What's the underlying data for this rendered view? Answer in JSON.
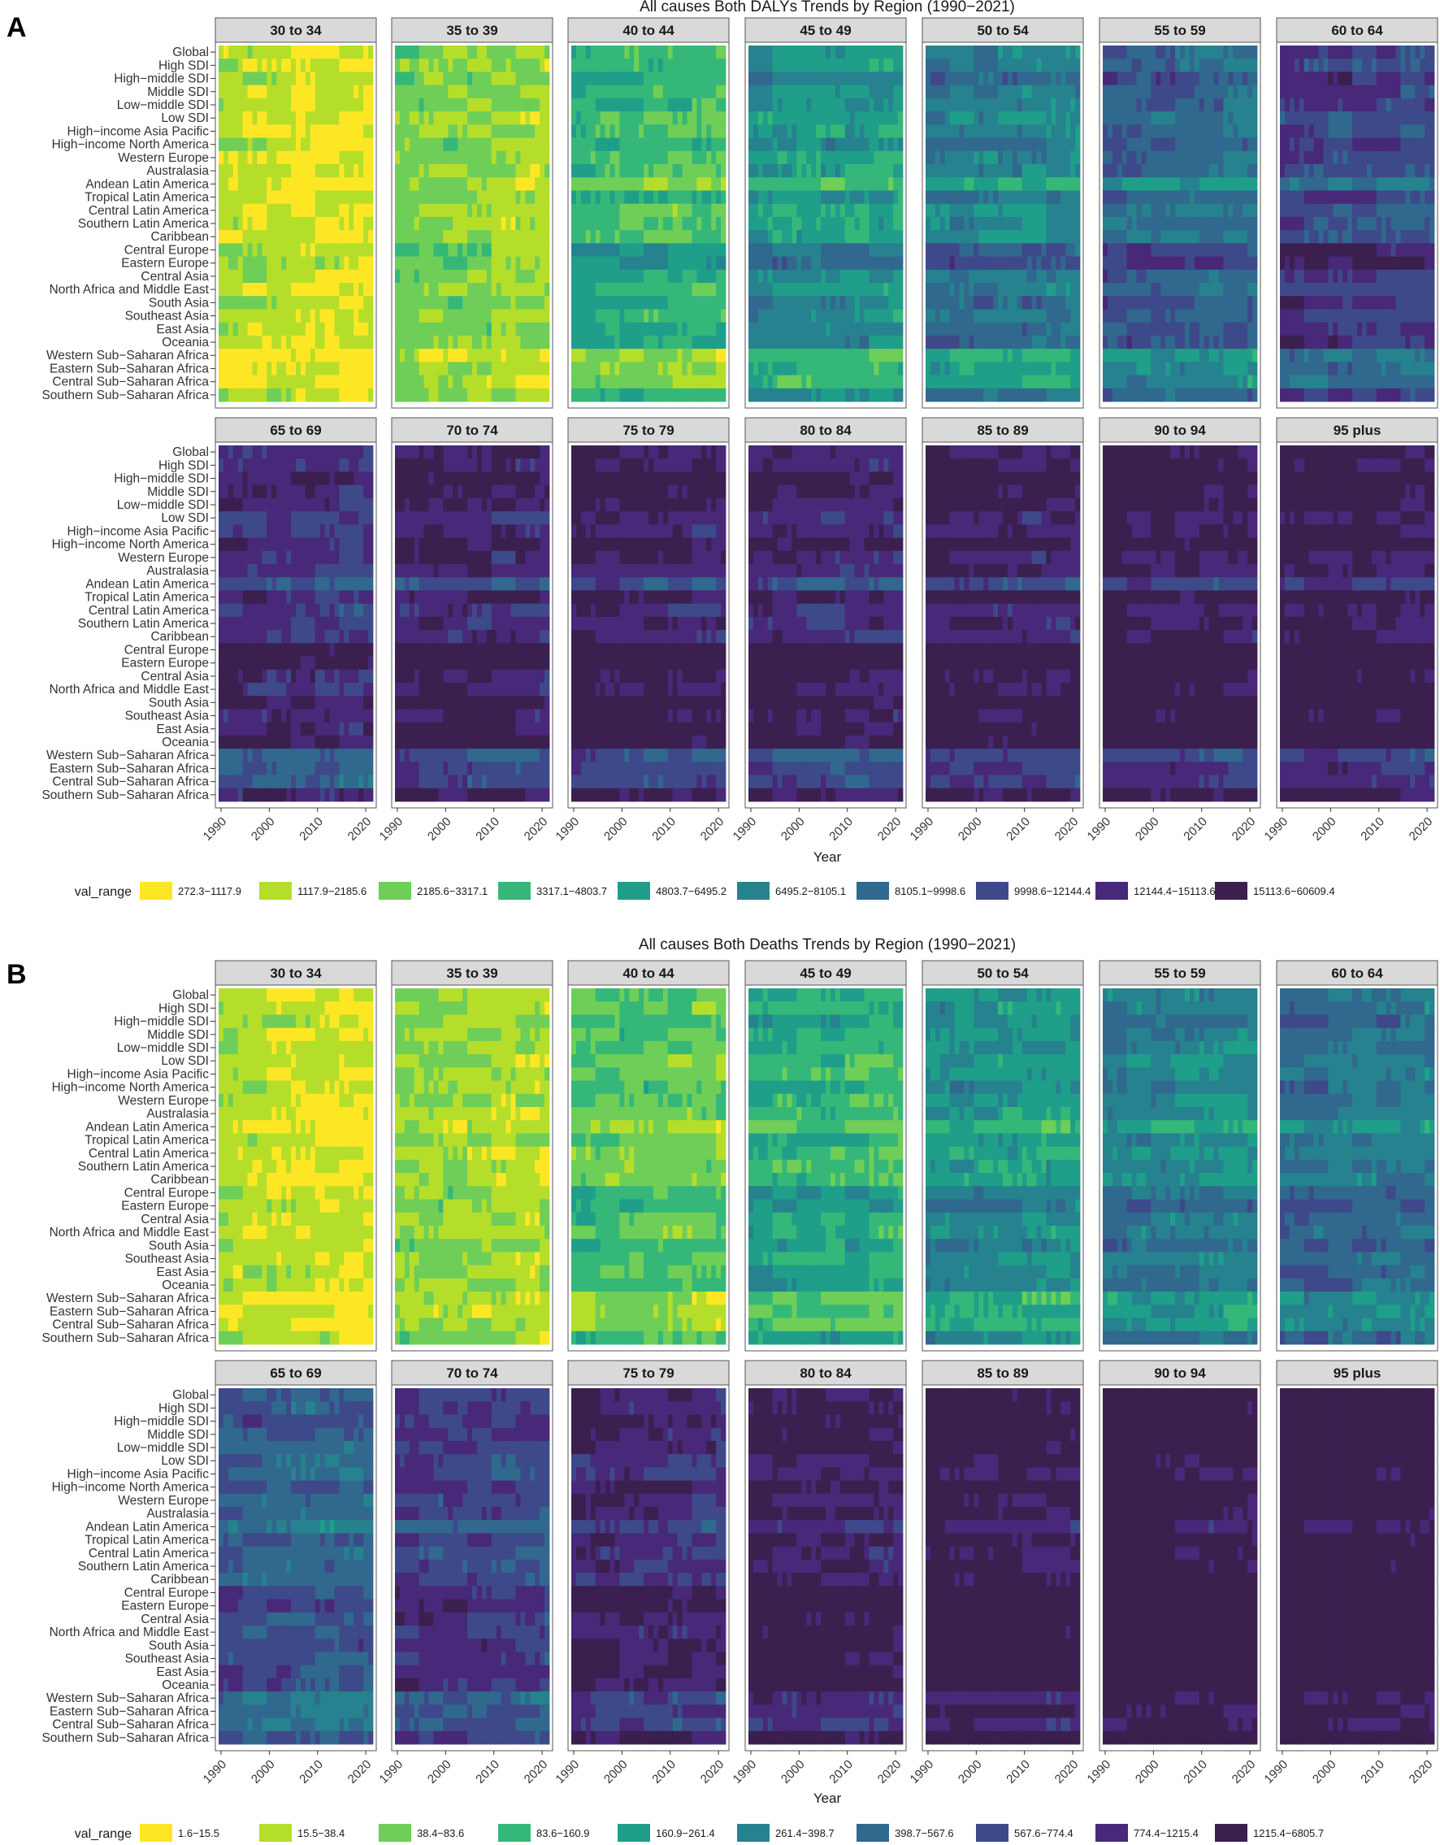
{
  "palettes": {
    "viridis10": [
      "#fde725",
      "#b5de2b",
      "#6ece58",
      "#35b779",
      "#1f9e89",
      "#26828e",
      "#31688e",
      "#3e4989",
      "#482878",
      "#3b1f4f"
    ]
  },
  "chart_data": [
    {
      "type": "heatmap",
      "panel_label": "A",
      "title": "All causes Both DALYs Trends by Region (1990−2021)",
      "xlabel": "Year",
      "x_range": [
        1990,
        2021
      ],
      "x_ticks": [
        1990,
        2000,
        2010,
        2020
      ],
      "x_tick_labels": [
        "1990",
        "2000",
        "2010",
        "2020"
      ],
      "regions": [
        "Global",
        "High SDI",
        "High−middle SDI",
        "Middle SDI",
        "Low−middle SDI",
        "Low SDI",
        "High−income Asia Pacific",
        "High−income North America",
        "Western Europe",
        "Australasia",
        "Andean Latin America",
        "Tropical Latin America",
        "Central Latin America",
        "Southern Latin America",
        "Caribbean",
        "Central Europe",
        "Eastern Europe",
        "Central Asia",
        "North Africa and Middle East",
        "South Asia",
        "Southeast Asia",
        "East Asia",
        "Oceania",
        "Western Sub−Saharan Africa",
        "Eastern Sub−Saharan Africa",
        "Central Sub−Saharan Africa",
        "Southern Sub−Saharan Africa"
      ],
      "facets": [
        "30 to 34",
        "35 to 39",
        "40 to 44",
        "45 to 49",
        "50 to 54",
        "55 to 59",
        "60 to 64",
        "65 to 69",
        "70 to 74",
        "75 to 79",
        "80 to 84",
        "85 to 89",
        "90 to 94",
        "95 plus"
      ],
      "facet_base_level": [
        0.3,
        1.2,
        2.6,
        3.9,
        4.8,
        5.6,
        6.8,
        7.4,
        8.0,
        8.2,
        7.9,
        8.2,
        8.5,
        8.6
      ],
      "region_offsets": [
        0,
        0,
        0.8,
        0.3,
        0.2,
        -0.4,
        -0.3,
        0.5,
        -0.2,
        -0.2,
        -1.6,
        0.2,
        -0.6,
        -0.3,
        -0.4,
        1.2,
        1.5,
        0.3,
        0.1,
        0.9,
        0.2,
        0.6,
        0.7,
        -1.8,
        -1.2,
        -1.4,
        0.3
      ],
      "legend_title": "val_range",
      "legend": [
        "272.3−1117.9",
        "1117.9−2185.6",
        "2185.6−3317.1",
        "3317.1−4803.7",
        "4803.7−6495.2",
        "6495.2−8105.1",
        "8105.1−9998.6",
        "9998.6−12144.4",
        "12144.4−15113.6",
        "15113.6−60609.4"
      ]
    },
    {
      "type": "heatmap",
      "panel_label": "B",
      "title": "All causes Both Deaths Trends by Region (1990−2021)",
      "xlabel": "Year",
      "x_range": [
        1990,
        2021
      ],
      "x_ticks": [
        1990,
        2000,
        2010,
        2020
      ],
      "x_tick_labels": [
        "1990",
        "2000",
        "2010",
        "2020"
      ],
      "regions": [
        "Global",
        "High SDI",
        "High−middle SDI",
        "Middle SDI",
        "Low−middle SDI",
        "Low SDI",
        "High−income Asia Pacific",
        "High−income North America",
        "Western Europe",
        "Australasia",
        "Andean Latin America",
        "Tropical Latin America",
        "Central Latin America",
        "Southern Latin America",
        "Caribbean",
        "Central Europe",
        "Eastern Europe",
        "Central Asia",
        "North Africa and Middle East",
        "South Asia",
        "Southeast Asia",
        "East Asia",
        "Oceania",
        "Western Sub−Saharan Africa",
        "Eastern Sub−Saharan Africa",
        "Central Sub−Saharan Africa",
        "Southern Sub−Saharan Africa"
      ],
      "facets": [
        "30 to 34",
        "35 to 39",
        "40 to 44",
        "45 to 49",
        "50 to 54",
        "55 to 59",
        "60 to 64",
        "65 to 69",
        "70 to 74",
        "75 to 79",
        "80 to 84",
        "85 to 89",
        "90 to 94",
        "95 plus"
      ],
      "facet_base_level": [
        0.3,
        1.0,
        2.0,
        3.0,
        4.0,
        4.6,
        5.3,
        6.0,
        6.9,
        7.8,
        8.4,
        8.8,
        9.1,
        9.2
      ],
      "region_offsets": [
        0,
        0,
        0.6,
        0.2,
        0.1,
        -0.3,
        -0.4,
        0.3,
        -0.2,
        -0.2,
        -1.2,
        0.0,
        -0.5,
        -0.3,
        -0.3,
        0.8,
        1.1,
        0.3,
        0.1,
        0.7,
        0.2,
        0.5,
        0.6,
        -1.0,
        -0.7,
        -0.9,
        0.4
      ],
      "legend_title": "val_range",
      "legend": [
        "1.6−15.5",
        "15.5−38.4",
        "38.4−83.6",
        "83.6−160.9",
        "160.9−261.4",
        "261.4−398.7",
        "398.7−567.6",
        "567.6−774.4",
        "774.4−1215.4",
        "1215.4−6805.7"
      ]
    }
  ]
}
